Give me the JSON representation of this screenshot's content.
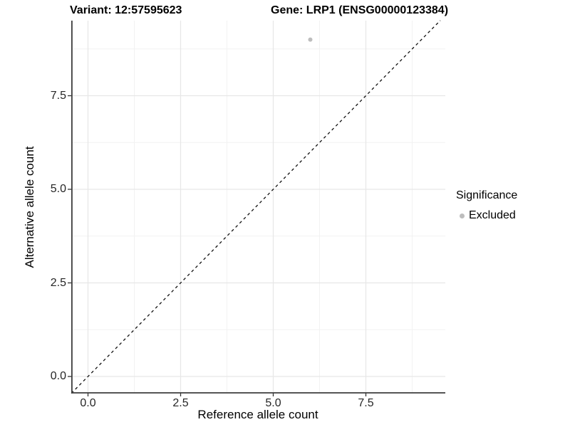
{
  "chart_data": {
    "type": "scatter",
    "title_left": "Variant: 12:57595623",
    "title_right": "Gene: LRP1 (ENSG00000123384)",
    "xlabel": "Reference allele count",
    "ylabel": "Alternative allele count",
    "xlim": [
      -0.45,
      9.64
    ],
    "ylim": [
      -0.45,
      9.51
    ],
    "x_major_ticks": [
      0,
      2.5,
      5,
      7.5
    ],
    "y_major_ticks": [
      0,
      2.5,
      5,
      7.5
    ],
    "x_tick_labels": [
      "0.0",
      "2.5",
      "5.0",
      "7.5"
    ],
    "y_tick_labels": [
      "0.0",
      "2.5",
      "5.0",
      "7.5"
    ],
    "x_minor_ticks": [
      1.25,
      3.75,
      6.25,
      8.75
    ],
    "y_minor_ticks": [
      1.25,
      3.75,
      6.25,
      8.75
    ],
    "grid": true,
    "reference_line": {
      "type": "abline",
      "slope": 1,
      "intercept": 0,
      "style": "dashed",
      "color": "#111111"
    },
    "series": [
      {
        "name": "Excluded",
        "color": "#bdbdbd",
        "points": [
          {
            "x": 6,
            "y": 9
          }
        ]
      }
    ],
    "legend": {
      "title": "Significance",
      "position": "right",
      "items": [
        {
          "label": "Excluded",
          "color": "#bdbdbd"
        }
      ]
    }
  },
  "colors": {
    "background": "#ffffff",
    "grid_major": "#e7e7e7",
    "grid_minor": "#f2f2f2",
    "axis_line": "#3d3d3d",
    "tick_mark": "#333333",
    "tick_text": "#262626",
    "point": "#bdbdbd"
  }
}
